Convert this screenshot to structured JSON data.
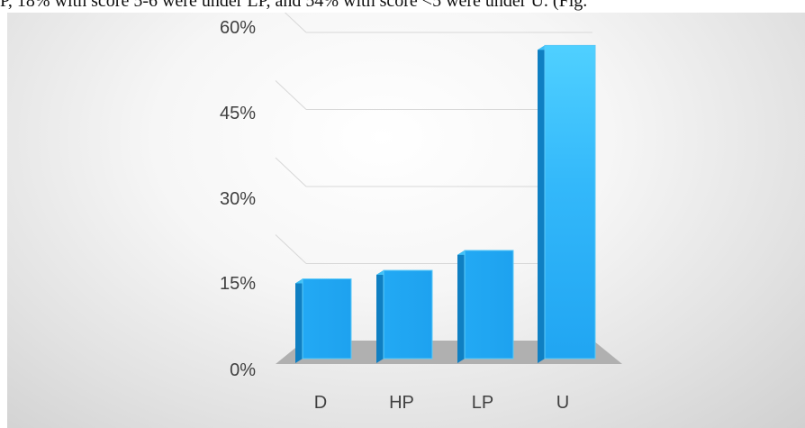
{
  "caption": {
    "text": "P, 18% with score 5-6 were under LP, and 54% with score <5 were under U. (Fig."
  },
  "chart_data": {
    "type": "bar",
    "title": "",
    "xlabel": "",
    "ylabel": "",
    "categories": [
      "D",
      "HP",
      "LP",
      "U"
    ],
    "values": [
      0.14,
      0.155,
      0.19,
      0.55
    ],
    "ylim": [
      0,
      0.6
    ],
    "yticks": [
      0,
      0.15,
      0.3,
      0.45,
      0.6
    ],
    "ytick_labels": [
      "0%",
      "15%",
      "30%",
      "45%",
      "60%"
    ],
    "grid": true,
    "legend": "none",
    "style": "3d-column",
    "colors": {
      "bar_front": "#21a7f3",
      "bar_side": "#0f7fc2",
      "bar_top": "#3ec0f7",
      "floor": "#b0b0b0",
      "grid": "#d8d8d8",
      "text": "#404040"
    }
  }
}
